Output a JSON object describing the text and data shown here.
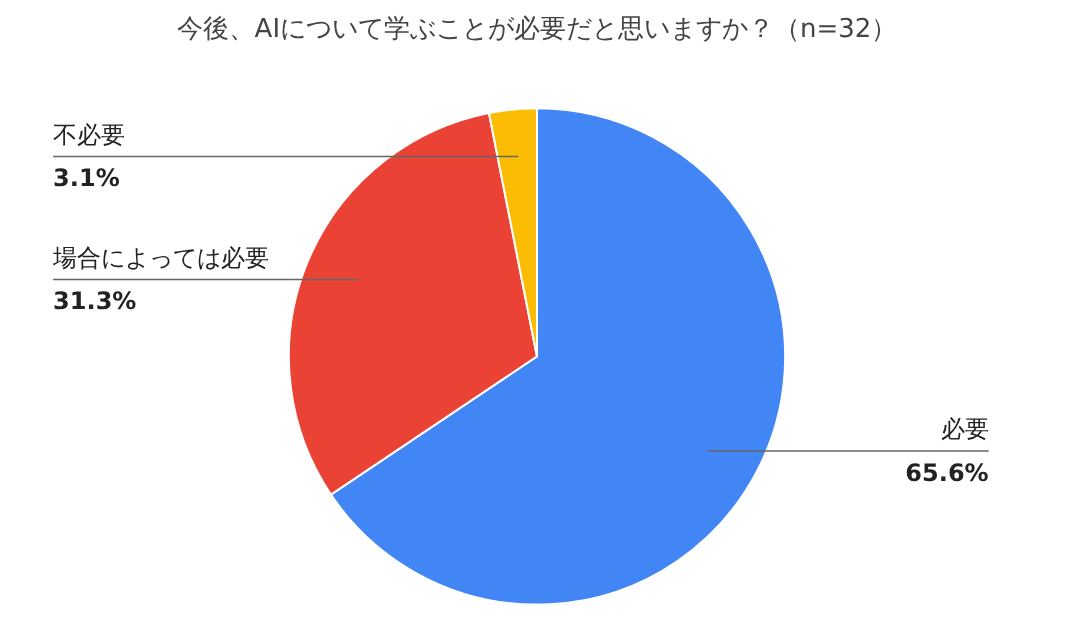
{
  "chart_data": {
    "type": "pie",
    "title": "今後、AIについて学ぶことが必要だと思いますか？（n=32）",
    "categories": [
      "必要",
      "場合によっては必要",
      "不必要"
    ],
    "values": [
      65.6,
      31.3,
      3.1
    ],
    "colors": [
      "#4285f4",
      "#ea4335",
      "#fbbc04"
    ],
    "value_labels": [
      "65.6%",
      "31.3%",
      "3.1%"
    ]
  }
}
